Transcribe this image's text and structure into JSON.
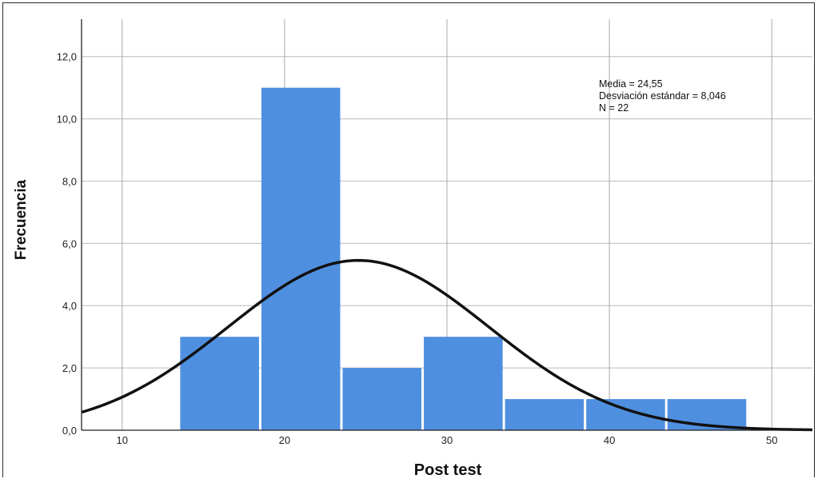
{
  "chart_data": {
    "type": "bar",
    "subtype": "histogram",
    "xlabel": "Post test",
    "ylabel": "Frecuencia",
    "xlim": [
      7.5,
      52.5
    ],
    "ylim": [
      0,
      13.2
    ],
    "xticks": [
      10,
      20,
      30,
      40,
      50
    ],
    "yticks": [
      0,
      2,
      4,
      6,
      8,
      10,
      12
    ],
    "ytick_labels": [
      "0,0",
      "2,0",
      "4,0",
      "6,0",
      "8,0",
      "10,0",
      "12,0"
    ],
    "bins": [
      {
        "start": 13.5,
        "end": 18.5,
        "count": 3
      },
      {
        "start": 18.5,
        "end": 23.5,
        "count": 11
      },
      {
        "start": 23.5,
        "end": 28.5,
        "count": 2
      },
      {
        "start": 28.5,
        "end": 33.5,
        "count": 3
      },
      {
        "start": 33.5,
        "end": 38.5,
        "count": 1
      },
      {
        "start": 38.5,
        "end": 43.5,
        "count": 1
      },
      {
        "start": 43.5,
        "end": 48.5,
        "count": 1
      }
    ],
    "normal_curve": {
      "mean": 24.55,
      "sd": 8.046,
      "n": 22,
      "bin_width": 5
    },
    "grid": true,
    "bar_color": "#4f8fe0",
    "bar_edge_color": "#ffffff",
    "curve_color": "#111111",
    "grid_color": "#c8c8c8",
    "stats_lines": [
      "Media = 24,55",
      "Desviación estándar = 8,046",
      "N = 22"
    ]
  }
}
